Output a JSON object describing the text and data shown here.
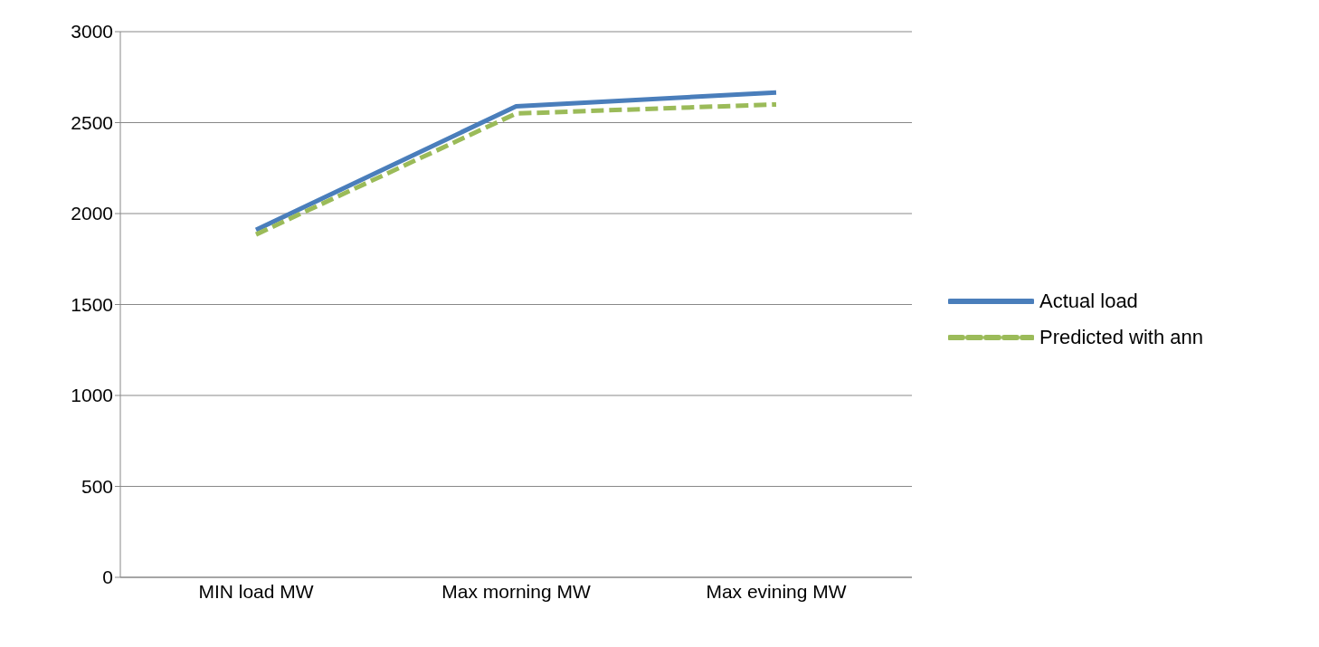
{
  "chart_data": {
    "type": "line",
    "categories": [
      "MIN load MW",
      "Max morning MW",
      "Max evining MW"
    ],
    "series": [
      {
        "name": "Actual load",
        "color": "#4a7ebb",
        "values": [
          1910,
          2590,
          2665
        ],
        "line_style": "solid"
      },
      {
        "name": "Predicted with ann",
        "color": "#9bbb59",
        "values": [
          1885,
          2550,
          2600
        ],
        "line_style": "dashed"
      }
    ],
    "ylim": [
      0,
      3000
    ],
    "yticks": [
      0,
      500,
      1000,
      1500,
      2000,
      2500,
      3000
    ],
    "grid": "y",
    "legend": "right",
    "marker": "none"
  }
}
